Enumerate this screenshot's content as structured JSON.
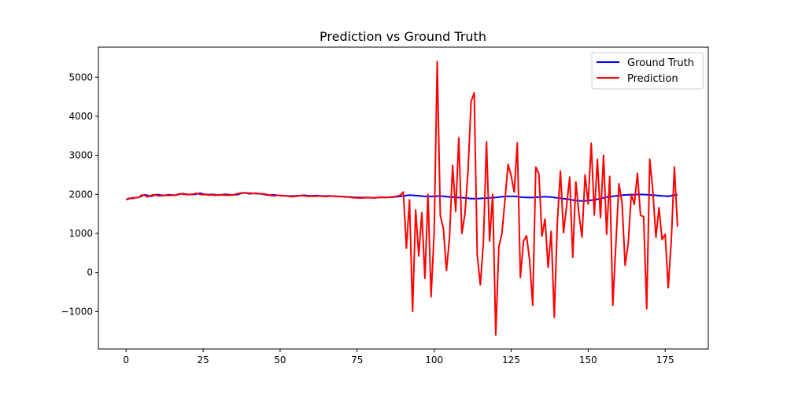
{
  "chart_data": {
    "type": "line",
    "title": "Prediction vs Ground Truth",
    "xlabel": "",
    "ylabel": "",
    "xlim": [
      -9,
      189
    ],
    "ylim": [
      -1960,
      5770
    ],
    "x_ticks": [
      0,
      25,
      50,
      75,
      100,
      125,
      150,
      175
    ],
    "y_ticks": [
      -1000,
      0,
      1000,
      2000,
      3000,
      4000,
      5000
    ],
    "x_tick_labels": [
      "0",
      "25",
      "50",
      "75",
      "100",
      "125",
      "150",
      "175"
    ],
    "y_tick_labels": [
      "−1000",
      "0",
      "1000",
      "2000",
      "3000",
      "4000",
      "5000"
    ],
    "grid": false,
    "legend_position": "top-right",
    "series": [
      {
        "name": "Ground Truth",
        "color": "#0000ff",
        "x": [
          0,
          2,
          4,
          6,
          8,
          10,
          12,
          14,
          16,
          18,
          20,
          22,
          24,
          26,
          28,
          30,
          32,
          34,
          36,
          38,
          40,
          42,
          44,
          46,
          48,
          50,
          52,
          54,
          56,
          58,
          60,
          62,
          64,
          66,
          68,
          70,
          72,
          74,
          76,
          78,
          80,
          82,
          84,
          86,
          88,
          90,
          92,
          94,
          96,
          98,
          100,
          102,
          104,
          106,
          108,
          110,
          112,
          114,
          116,
          118,
          120,
          122,
          124,
          126,
          128,
          130,
          132,
          134,
          136,
          138,
          140,
          142,
          144,
          146,
          148,
          150,
          152,
          154,
          156,
          158,
          160,
          162,
          164,
          166,
          168,
          170,
          172,
          174,
          176,
          178,
          179
        ],
        "values": [
          1870,
          1910,
          1920,
          1990,
          1950,
          1995,
          1970,
          1990,
          1975,
          2020,
          2000,
          1995,
          2030,
          1990,
          2000,
          1980,
          2000,
          1985,
          1990,
          2040,
          2030,
          2020,
          2010,
          1980,
          1985,
          1970,
          1960,
          1955,
          1965,
          1975,
          1960,
          1970,
          1955,
          1960,
          1950,
          1945,
          1935,
          1925,
          1920,
          1920,
          1910,
          1920,
          1920,
          1925,
          1940,
          1960,
          1980,
          1970,
          1955,
          1945,
          1950,
          1960,
          1940,
          1930,
          1920,
          1910,
          1890,
          1890,
          1900,
          1910,
          1920,
          1940,
          1950,
          1950,
          1930,
          1920,
          1920,
          1930,
          1940,
          1930,
          1910,
          1890,
          1870,
          1840,
          1830,
          1840,
          1860,
          1890,
          1930,
          1950,
          1970,
          1985,
          1990,
          1995,
          1995,
          1985,
          1975,
          1960,
          1950,
          1980,
          1990
        ]
      },
      {
        "name": "Prediction",
        "color": "#ff0000",
        "x": [
          0,
          1,
          2,
          3,
          4,
          5,
          6,
          7,
          8,
          9,
          10,
          11,
          12,
          13,
          14,
          15,
          16,
          17,
          18,
          19,
          20,
          21,
          22,
          23,
          24,
          25,
          26,
          27,
          28,
          29,
          30,
          31,
          32,
          33,
          34,
          35,
          36,
          37,
          38,
          39,
          40,
          41,
          42,
          43,
          44,
          45,
          46,
          47,
          48,
          49,
          50,
          51,
          52,
          53,
          54,
          55,
          56,
          57,
          58,
          59,
          60,
          61,
          62,
          63,
          64,
          65,
          66,
          67,
          68,
          69,
          70,
          71,
          72,
          73,
          74,
          75,
          76,
          77,
          78,
          79,
          80,
          81,
          82,
          83,
          84,
          85,
          86,
          87,
          88,
          89,
          90,
          91,
          92,
          93,
          94,
          95,
          96,
          97,
          98,
          99,
          100,
          101,
          102,
          103,
          104,
          105,
          106,
          107,
          108,
          109,
          110,
          111,
          112,
          113,
          114,
          115,
          116,
          117,
          118,
          119,
          120,
          121,
          122,
          123,
          124,
          125,
          126,
          127,
          128,
          129,
          130,
          131,
          132,
          133,
          134,
          135,
          136,
          137,
          138,
          139,
          140,
          141,
          142,
          143,
          144,
          145,
          146,
          147,
          148,
          149,
          150,
          151,
          152,
          153,
          154,
          155,
          156,
          157,
          158,
          159,
          160,
          161,
          162,
          163,
          164,
          165,
          166,
          167,
          168,
          169,
          170,
          171,
          172,
          173,
          174,
          175,
          176,
          177,
          178,
          179
        ],
        "values": [
          1860,
          1900,
          1895,
          1915,
          1920,
          1980,
          1975,
          1935,
          1970,
          1990,
          1975,
          1960,
          1970,
          1975,
          1970,
          1980,
          1975,
          2010,
          2010,
          2000,
          1990,
          2000,
          2010,
          2030,
          2000,
          1990,
          2000,
          1980,
          1985,
          1975,
          1990,
          1985,
          1980,
          1975,
          1980,
          1990,
          2010,
          2030,
          2040,
          2030,
          2010,
          2020,
          2030,
          2020,
          2015,
          2005,
          1990,
          1970,
          1960,
          1975,
          1970,
          1965,
          1960,
          1950,
          1940,
          1950,
          1960,
          1970,
          1960,
          1950,
          1955,
          1950,
          1955,
          1960,
          1950,
          1945,
          1960,
          1955,
          1950,
          1945,
          1940,
          1935,
          1930,
          1920,
          1915,
          1910,
          1905,
          1910,
          1915,
          1920,
          1915,
          1910,
          1920,
          1930,
          1925,
          1920,
          1935,
          1940,
          1950,
          1980,
          2060,
          620,
          1860,
          -1000,
          1600,
          420,
          1530,
          -150,
          2000,
          -620,
          1000,
          5400,
          1450,
          1130,
          50,
          900,
          2740,
          1560,
          3450,
          1000,
          1500,
          2600,
          4380,
          4600,
          430,
          -320,
          780,
          3350,
          800,
          2000,
          -1600,
          650,
          1000,
          1860,
          2770,
          2480,
          2060,
          3320,
          -130,
          800,
          940,
          310,
          -840,
          2700,
          2530,
          930,
          1370,
          130,
          1050,
          -1150,
          1300,
          2600,
          1020,
          1700,
          2440,
          390,
          2320,
          1500,
          900,
          2500,
          1750,
          3310,
          1470,
          2900,
          1400,
          3000,
          980,
          2460,
          -840,
          740,
          2270,
          1780,
          180,
          740,
          2000,
          1740,
          2540,
          1460,
          1430,
          -930,
          2900,
          2080,
          900,
          1660,
          840,
          980,
          -390,
          840,
          2700,
          1170
        ]
      }
    ]
  }
}
